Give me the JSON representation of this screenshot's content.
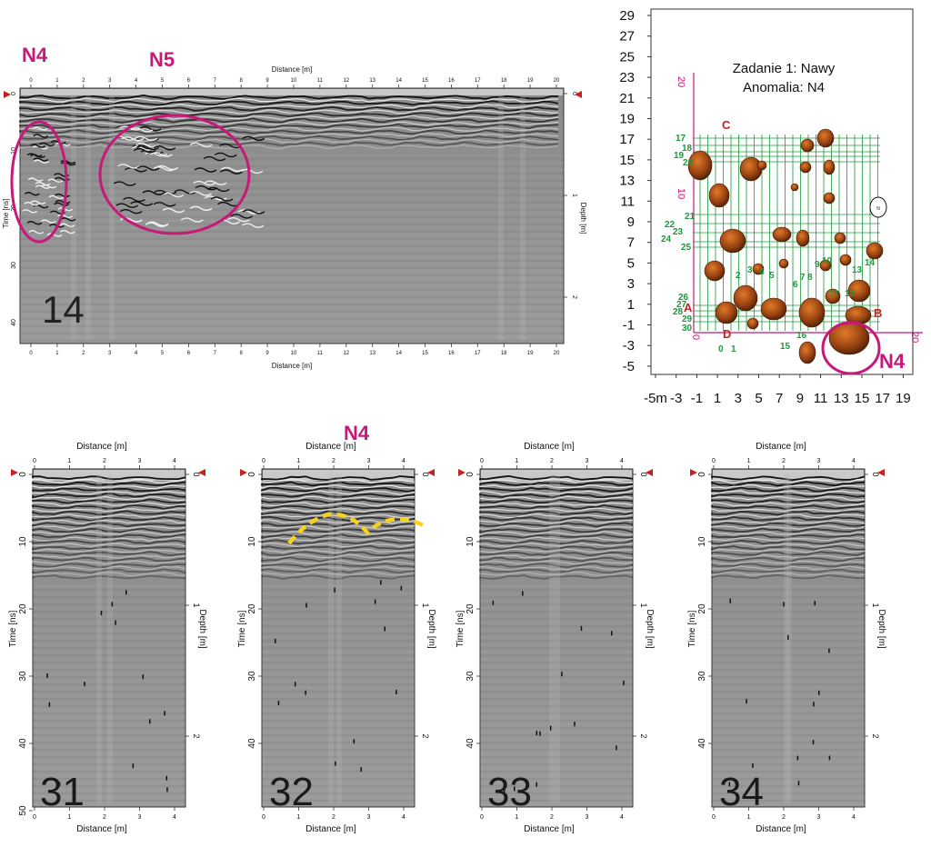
{
  "annotations": {
    "n4_top_left": "N4",
    "n5": "N5",
    "n4_map": "N4",
    "n4_bottom": "N4"
  },
  "colors": {
    "magenta": "#c8187a",
    "green": "#1a9a3a",
    "yellow": "#f5d21e",
    "brown": "#8a3c10",
    "grid": "#222222"
  },
  "profile_14": {
    "number": "14",
    "x_label": "Distance [m]",
    "y_label": "Time [ns]",
    "depth_label": "Depth [m]",
    "x_ticks": [
      "0",
      "1",
      "2",
      "3",
      "4",
      "5",
      "6",
      "7",
      "8",
      "9",
      "10",
      "11",
      "12",
      "13",
      "14",
      "15",
      "16",
      "17",
      "18",
      "19",
      "20"
    ],
    "time_ticks": [
      "0",
      "10",
      "20",
      "30",
      "40"
    ],
    "depth_ticks": [
      "0",
      "1",
      "2"
    ]
  },
  "map": {
    "title_line1": "Zadanie 1: Nawy",
    "title_line2": "Anomalia: N4",
    "y_ticks": [
      "29",
      "27",
      "25",
      "23",
      "21",
      "19",
      "17",
      "15",
      "13",
      "11",
      "9",
      "7",
      "5",
      "3",
      "1",
      "-1",
      "-3",
      "-5"
    ],
    "x_ticks": [
      "-5m",
      "-3",
      "-1",
      "1",
      "3",
      "5",
      "7",
      "9",
      "11",
      "13",
      "15",
      "17",
      "19"
    ],
    "inner_labels": {
      "c": "C",
      "a": "A",
      "b": "B",
      "d": "D",
      "v20": "20",
      "v10": "10",
      "h20": "20",
      "h0": "0",
      "compass": "N"
    },
    "line_numbers": [
      "17",
      "18",
      "19",
      "20",
      "21",
      "22",
      "23",
      "24",
      "25",
      "26",
      "27",
      "28",
      "29",
      "30",
      "1",
      "2",
      "3",
      "4",
      "5",
      "6",
      "7",
      "8",
      "9",
      "10",
      "11",
      "12",
      "13",
      "14",
      "15",
      "16",
      "0"
    ]
  },
  "profiles_small": [
    {
      "number": "31",
      "x_label": "Distance [m]",
      "y_label": "Time [ns]",
      "depth_label": "Depth [m]",
      "x_ticks": [
        "0",
        "1",
        "2",
        "3",
        "4"
      ],
      "time_ticks": [
        "0",
        "10",
        "20",
        "30",
        "40",
        "50"
      ],
      "depth_ticks": [
        "0",
        "1",
        "2"
      ]
    },
    {
      "number": "32",
      "x_label": "Distance [m]",
      "y_label": "Time [ns]",
      "depth_label": "Depth [m]",
      "x_ticks": [
        "0",
        "1",
        "2",
        "3",
        "4"
      ],
      "time_ticks": [
        "0",
        "10",
        "20",
        "30",
        "40"
      ],
      "depth_ticks": [
        "0",
        "1",
        "2"
      ]
    },
    {
      "number": "33",
      "x_label": "Distance [m]",
      "y_label": "Time [ns]",
      "depth_label": "Depth [m]",
      "x_ticks": [
        "0",
        "1",
        "2",
        "3",
        "4"
      ],
      "time_ticks": [
        "0",
        "10",
        "20",
        "30",
        "40"
      ],
      "depth_ticks": [
        "0",
        "1",
        "2"
      ]
    },
    {
      "number": "34",
      "x_label": "Distance [m]",
      "y_label": "Time [ns]",
      "depth_label": "Depth [m]",
      "x_ticks": [
        "0",
        "1",
        "2",
        "3",
        "4"
      ],
      "time_ticks": [
        "0",
        "10",
        "20",
        "30",
        "40"
      ],
      "depth_ticks": [
        "0",
        "1",
        "2"
      ]
    }
  ]
}
